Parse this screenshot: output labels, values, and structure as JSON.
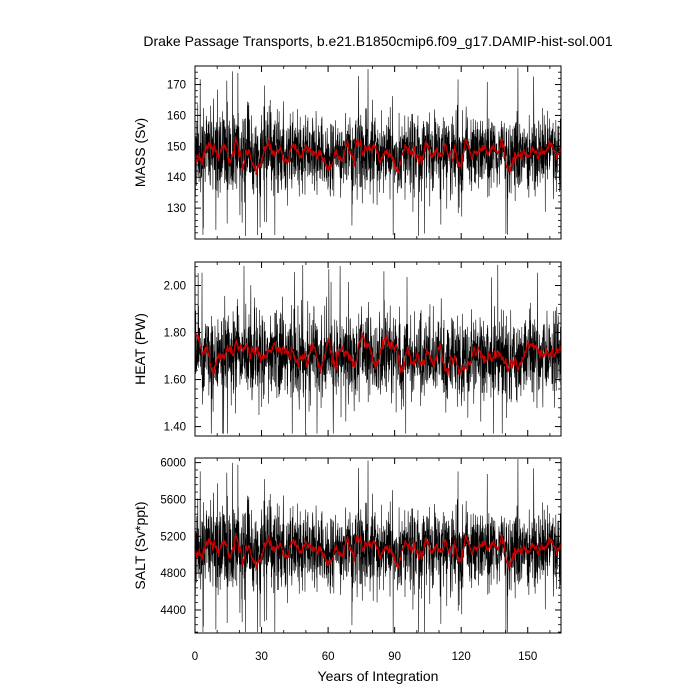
{
  "chart_data": {
    "type": "line",
    "title": "Drake Passage Transports, b.e21.B1850cmip6.f09_g17.DAMIP-hist-sol.001",
    "xlabel": "Years of Integration",
    "xlim": [
      0,
      165
    ],
    "xticks": [
      0,
      30,
      60,
      90,
      120,
      150
    ],
    "xtick_labels": [
      "0",
      "30",
      "60",
      "90",
      "120",
      "150"
    ],
    "colors": {
      "raw": "#000000",
      "smoothed": "#cc0000"
    },
    "panels": [
      {
        "ylabel": "MASS (Sv)",
        "ylim": [
          120,
          176
        ],
        "yticks": [
          130,
          140,
          150,
          160,
          170
        ],
        "ytick_labels": [
          "130",
          "140",
          "150",
          "160",
          "170"
        ],
        "mean": 148,
        "spread": 6.5,
        "smooth_amp": 2.2,
        "min": 121,
        "max": 175.5,
        "seed": 11
      },
      {
        "ylabel": "HEAT (PW)",
        "ylim": [
          1.36,
          2.1
        ],
        "yticks": [
          1.4,
          1.6,
          1.8,
          2.0
        ],
        "ytick_labels": [
          "1.40",
          "1.60",
          "1.80",
          "2.00"
        ],
        "mean": 1.695,
        "spread": 0.09,
        "smooth_amp": 0.03,
        "min": 1.37,
        "max": 2.09,
        "seed": 23
      },
      {
        "ylabel": "SALT (Sv*ppt)",
        "ylim": [
          4150,
          6050
        ],
        "yticks": [
          4400,
          4800,
          5200,
          5600,
          6000
        ],
        "ytick_labels": [
          "4400",
          "4800",
          "5200",
          "5600",
          "6000"
        ],
        "mean": 5070,
        "spread": 225,
        "smooth_amp": 70,
        "min": 4160,
        "max": 6040,
        "seed": 11
      }
    ]
  }
}
